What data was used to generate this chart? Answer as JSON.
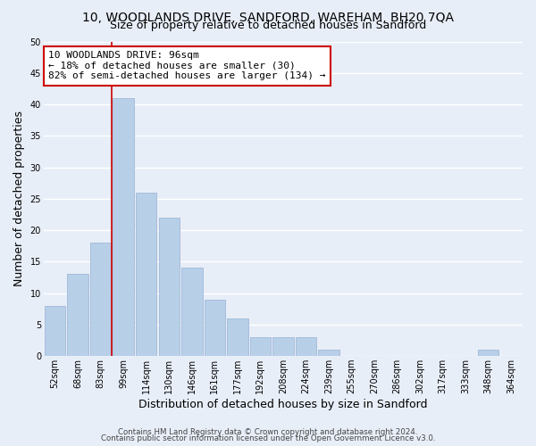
{
  "title": "10, WOODLANDS DRIVE, SANDFORD, WAREHAM, BH20 7QA",
  "subtitle": "Size of property relative to detached houses in Sandford",
  "xlabel": "Distribution of detached houses by size in Sandford",
  "ylabel": "Number of detached properties",
  "bar_labels": [
    "52sqm",
    "68sqm",
    "83sqm",
    "99sqm",
    "114sqm",
    "130sqm",
    "146sqm",
    "161sqm",
    "177sqm",
    "192sqm",
    "208sqm",
    "224sqm",
    "239sqm",
    "255sqm",
    "270sqm",
    "286sqm",
    "302sqm",
    "317sqm",
    "333sqm",
    "348sqm",
    "364sqm"
  ],
  "bar_values": [
    8,
    13,
    18,
    41,
    26,
    22,
    14,
    9,
    6,
    3,
    3,
    3,
    1,
    0,
    0,
    0,
    0,
    0,
    0,
    1,
    0
  ],
  "bar_color": "#b8cfe8",
  "bar_edge_color": "#a0b8d8",
  "vline_color": "#cc0000",
  "vline_x_idx": 2.5,
  "annotation_text": "10 WOODLANDS DRIVE: 96sqm\n← 18% of detached houses are smaller (30)\n82% of semi-detached houses are larger (134) →",
  "annotation_box_facecolor": "white",
  "annotation_box_edgecolor": "#cc0000",
  "ylim": [
    0,
    50
  ],
  "yticks": [
    0,
    5,
    10,
    15,
    20,
    25,
    30,
    35,
    40,
    45,
    50
  ],
  "footer_line1": "Contains HM Land Registry data © Crown copyright and database right 2024.",
  "footer_line2": "Contains public sector information licensed under the Open Government Licence v3.0.",
  "bg_color": "#e8eef8",
  "grid_color": "#ffffff",
  "title_fontsize": 10,
  "subtitle_fontsize": 9,
  "annotation_fontsize": 8,
  "tick_fontsize": 7,
  "axis_label_fontsize": 9
}
